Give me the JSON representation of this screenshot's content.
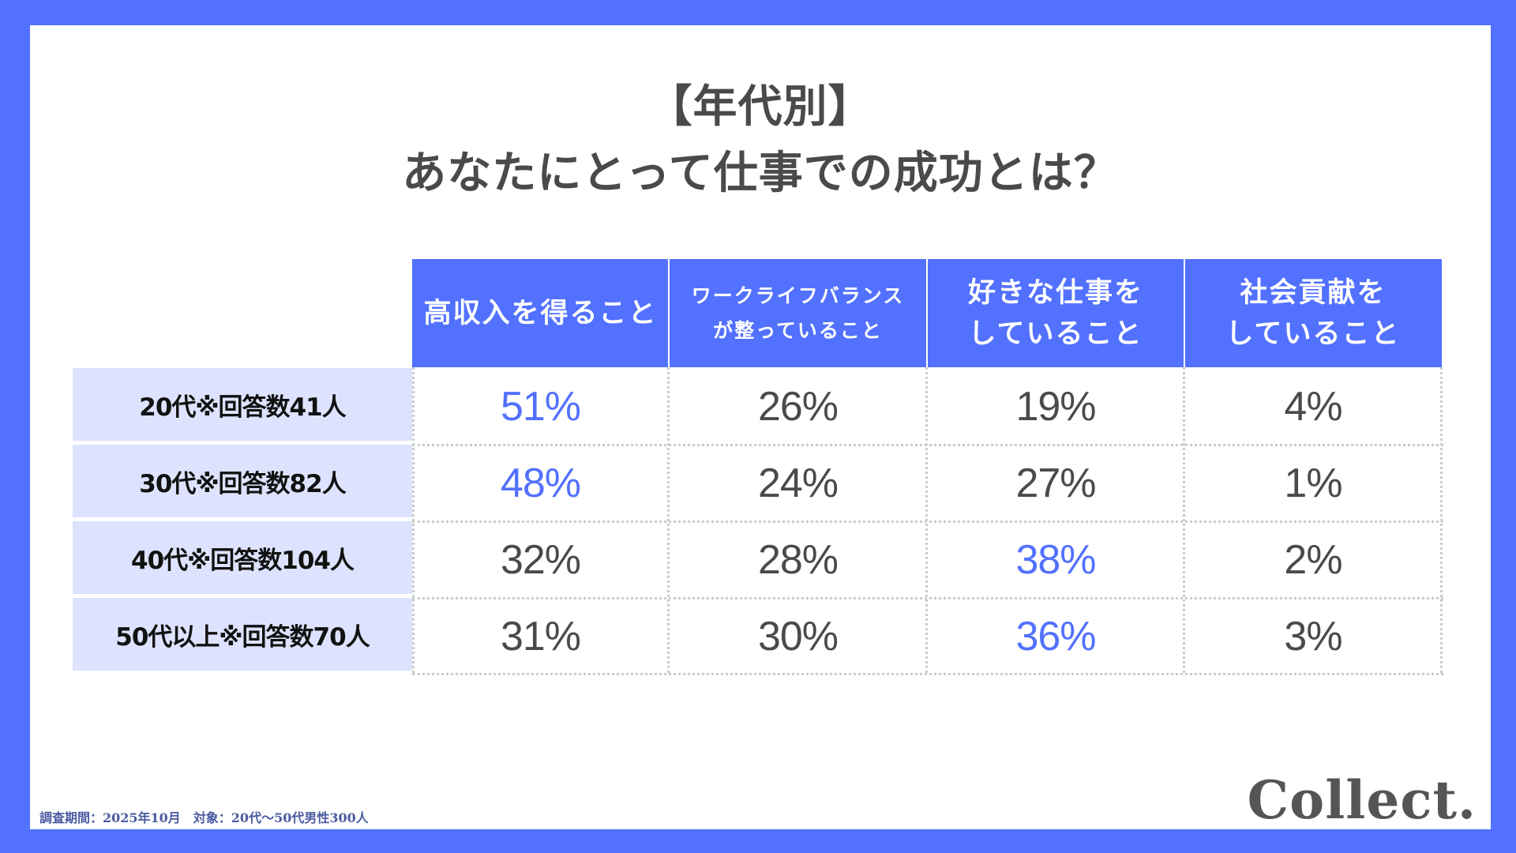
{
  "title": {
    "line1": "【年代別】",
    "line2": "あなたにとって仕事での成功とは？"
  },
  "table": {
    "columns": [
      {
        "lines": [
          "高収入を得ること"
        ],
        "size": "big"
      },
      {
        "lines": [
          "ワークライフバランス",
          "が整っていること"
        ],
        "size": "small"
      },
      {
        "lines": [
          "好きな仕事を",
          "していること"
        ],
        "size": "big"
      },
      {
        "lines": [
          "社会貢献を",
          "していること"
        ],
        "size": "big"
      }
    ],
    "rows": [
      {
        "label": "20代※回答数41人",
        "values": [
          "51%",
          "26%",
          "19%",
          "4%"
        ],
        "highlight": [
          0
        ]
      },
      {
        "label": "30代※回答数82人",
        "values": [
          "48%",
          "24%",
          "27%",
          "1%"
        ],
        "highlight": [
          0
        ]
      },
      {
        "label": "40代※回答数104人",
        "values": [
          "32%",
          "28%",
          "38%",
          "2%"
        ],
        "highlight": [
          2
        ]
      },
      {
        "label": "50代以上※回答数70人",
        "values": [
          "31%",
          "30%",
          "36%",
          "3%"
        ],
        "highlight": [
          2
        ]
      }
    ]
  },
  "footnote": "調査期間：2025年10月　対象：20代〜50代男性300人",
  "logo": "Collect.",
  "colors": {
    "accent": "#5271ff",
    "row_label_bg": "#dde3fe",
    "text": "#4a4a4a",
    "grid": "#cccccc"
  },
  "chart_data": {
    "type": "table",
    "title": "【年代別】あなたにとって仕事での成功とは？",
    "columns": [
      "高収入を得ること",
      "ワークライフバランスが整っていること",
      "好きな仕事をしていること",
      "社会貢献をしていること"
    ],
    "rows": [
      "20代※回答数41人",
      "30代※回答数82人",
      "40代※回答数104人",
      "50代以上※回答数70人"
    ],
    "series": [
      {
        "name": "20代※回答数41人",
        "values": [
          51,
          26,
          19,
          4
        ]
      },
      {
        "name": "30代※回答数82人",
        "values": [
          48,
          24,
          27,
          1
        ]
      },
      {
        "name": "40代※回答数104人",
        "values": [
          32,
          28,
          38,
          2
        ]
      },
      {
        "name": "50代以上※回答数70人",
        "values": [
          31,
          30,
          36,
          3
        ]
      }
    ],
    "unit": "%",
    "annotations": [
      "調査期間：2025年10月　対象：20代〜50代男性300人"
    ]
  }
}
